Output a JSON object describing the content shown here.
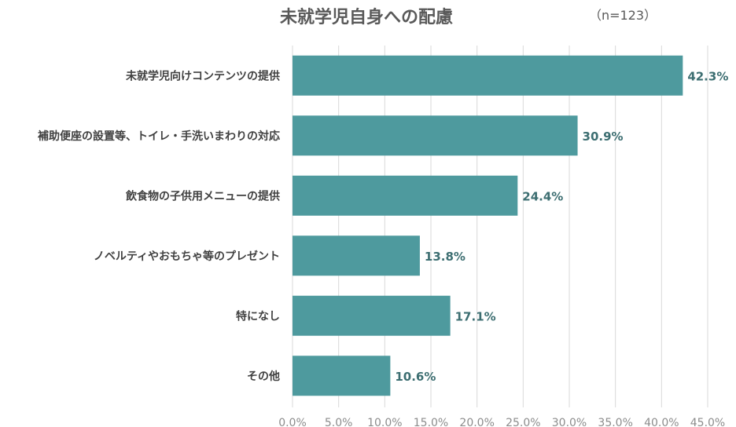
{
  "chart_data": {
    "type": "bar",
    "orientation": "horizontal",
    "title": "未就学児自身への配慮",
    "note": "（n=123）",
    "categories": [
      "未就学児向けコンテンツの提供",
      "補助便座の設置等、トイレ・手洗いまわりの対応",
      "飲食物の子供用メニューの提供",
      "ノベルティやおもちゃ等のプレゼント",
      "特になし",
      "その他"
    ],
    "values": [
      42.3,
      30.9,
      24.4,
      13.8,
      17.1,
      10.6
    ],
    "data_labels": [
      "42.3%",
      "30.9%",
      "24.4%",
      "13.8%",
      "17.1%",
      "10.6%"
    ],
    "xlim": [
      0,
      45
    ],
    "xticks": [
      "0.0%",
      "5.0%",
      "10.0%",
      "15.0%",
      "20.0%",
      "25.0%",
      "30.0%",
      "35.0%",
      "40.0%",
      "45.0%"
    ],
    "grid": true,
    "bar_color": "#4e9a9e",
    "label_color": "#3c6e71"
  }
}
